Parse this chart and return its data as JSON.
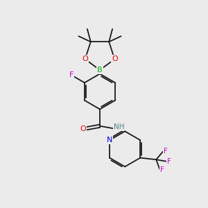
{
  "bg_color": "#ebebeb",
  "bond_color": "#1a1a1a",
  "atom_colors": {
    "O": "#e60000",
    "B": "#00b300",
    "F": "#cc00cc",
    "N": "#0000e6",
    "H": "#4d8080",
    "C": "#1a1a1a"
  },
  "bond_width": 1.3,
  "figsize": [
    3.0,
    3.0
  ],
  "dpi": 100
}
